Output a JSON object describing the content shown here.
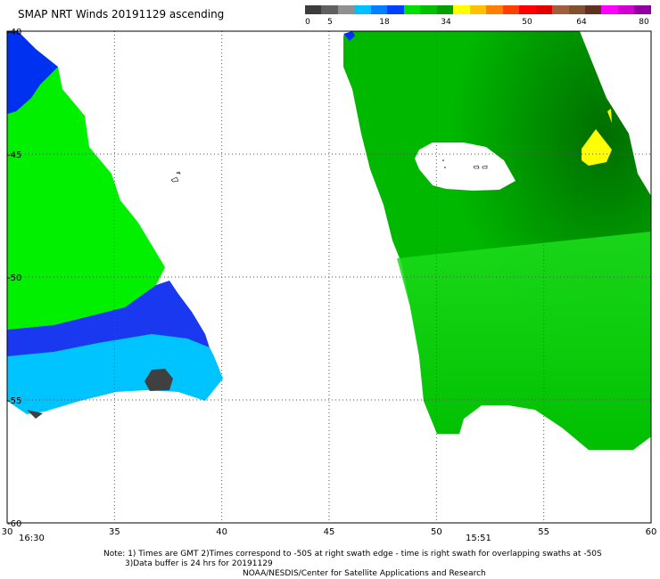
{
  "title": "SMAP NRT Winds 20191129 ascending",
  "colorbar": {
    "labels": [
      "0",
      "5",
      "18",
      "34",
      "50",
      "64",
      "80"
    ],
    "colors": [
      "#3c3c3c",
      "#606060",
      "#909090",
      "#00c0ff",
      "#0080ff",
      "#0040ff",
      "#00e000",
      "#00c000",
      "#00a000",
      "#ffff00",
      "#ffc000",
      "#ff8000",
      "#ff4000",
      "#ff0000",
      "#e00000",
      "#a06040",
      "#805030",
      "#603020",
      "#ff00ff",
      "#d000d0",
      "#9000a0"
    ]
  },
  "axes": {
    "x_labels": [
      "30",
      "35",
      "40",
      "45",
      "50",
      "55",
      "60"
    ],
    "y_labels": [
      "-40",
      "-45",
      "-50",
      "-55",
      "-60"
    ]
  },
  "times": [
    "16:30",
    "15:51"
  ],
  "notes": {
    "line1": "Note: 1) Times are GMT 2)Times correspond to -50S at right swath edge - time is right swath for overlapping swaths at -50S",
    "line2": "3)Data buffer is 24 hrs for 20191129",
    "line3": "NOAA/NESDIS/Center for Satellite Applications and Research"
  },
  "legend_colors": {
    "green_dark": "#009000",
    "green": "#00d000",
    "green_bright": "#00ff00",
    "blue": "#0030f0",
    "cyan": "#00c8ff",
    "yellow": "#ffff00",
    "gray": "#404040"
  }
}
